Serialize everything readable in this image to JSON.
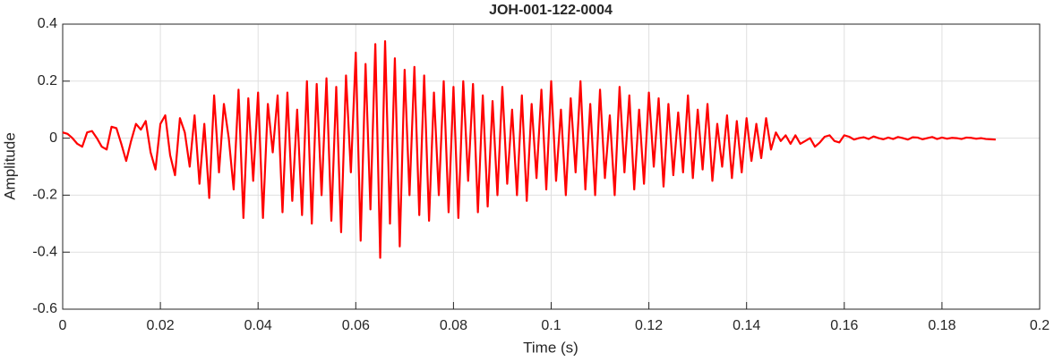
{
  "chart_data": {
    "type": "line",
    "title": "JOH-001-122-0004",
    "x_label": "Time (s)",
    "y_label": "Amplitude",
    "xlim": [
      0,
      0.2
    ],
    "xticks": [
      0,
      0.02,
      0.04,
      0.06,
      0.08,
      0.1,
      0.12,
      0.14,
      0.16,
      0.18,
      0.2
    ],
    "ylim": [
      -0.6,
      0.4
    ],
    "yticks": [
      -0.6,
      -0.4,
      -0.2,
      0,
      0.2,
      0.4
    ],
    "grid": true,
    "x": [
      0,
      0.001,
      0.002,
      0.003,
      0.004,
      0.005,
      0.006,
      0.007,
      0.008,
      0.009,
      0.01,
      0.011,
      0.012,
      0.013,
      0.014,
      0.015,
      0.016,
      0.017,
      0.018,
      0.019,
      0.02,
      0.021,
      0.022,
      0.023,
      0.024,
      0.025,
      0.026,
      0.027,
      0.028,
      0.029,
      0.03,
      0.031,
      0.032,
      0.033,
      0.034,
      0.035,
      0.036,
      0.037,
      0.038,
      0.039,
      0.04,
      0.041,
      0.042,
      0.043,
      0.044,
      0.045,
      0.046,
      0.047,
      0.048,
      0.049,
      0.05,
      0.051,
      0.052,
      0.053,
      0.054,
      0.055,
      0.056,
      0.057,
      0.058,
      0.059,
      0.06,
      0.061,
      0.062,
      0.063,
      0.064,
      0.065,
      0.066,
      0.067,
      0.068,
      0.069,
      0.07,
      0.071,
      0.072,
      0.073,
      0.074,
      0.075,
      0.076,
      0.077,
      0.078,
      0.079,
      0.08,
      0.081,
      0.082,
      0.083,
      0.084,
      0.085,
      0.086,
      0.087,
      0.088,
      0.089,
      0.09,
      0.091,
      0.092,
      0.093,
      0.094,
      0.095,
      0.096,
      0.097,
      0.098,
      0.099,
      0.1,
      0.101,
      0.102,
      0.103,
      0.104,
      0.105,
      0.106,
      0.107,
      0.108,
      0.109,
      0.11,
      0.111,
      0.112,
      0.113,
      0.114,
      0.115,
      0.116,
      0.117,
      0.118,
      0.119,
      0.12,
      0.121,
      0.122,
      0.123,
      0.124,
      0.125,
      0.126,
      0.127,
      0.128,
      0.129,
      0.13,
      0.131,
      0.132,
      0.133,
      0.134,
      0.135,
      0.136,
      0.137,
      0.138,
      0.139,
      0.14,
      0.141,
      0.142,
      0.143,
      0.144,
      0.145,
      0.146,
      0.147,
      0.148,
      0.149,
      0.15,
      0.151,
      0.152,
      0.153,
      0.154,
      0.155,
      0.156,
      0.157,
      0.158,
      0.159,
      0.16,
      0.161,
      0.162,
      0.163,
      0.164,
      0.165,
      0.166,
      0.167,
      0.168,
      0.169,
      0.17,
      0.171,
      0.172,
      0.173,
      0.174,
      0.175,
      0.176,
      0.177,
      0.178,
      0.179,
      0.18,
      0.181,
      0.182,
      0.183,
      0.184,
      0.185,
      0.186,
      0.187,
      0.188,
      0.189,
      0.19,
      0.191
    ],
    "series": [
      {
        "color": "#ff0000",
        "values": [
          0.02,
          0.015,
          0.0,
          -0.02,
          -0.03,
          0.02,
          0.025,
          0.0,
          -0.03,
          -0.04,
          0.04,
          0.035,
          -0.02,
          -0.08,
          -0.01,
          0.05,
          0.03,
          0.06,
          -0.05,
          -0.11,
          0.05,
          0.08,
          -0.06,
          -0.13,
          0.07,
          0.02,
          -0.1,
          0.08,
          -0.16,
          0.05,
          -0.21,
          0.15,
          -0.12,
          0.12,
          0.0,
          -0.18,
          0.17,
          -0.28,
          0.14,
          -0.15,
          0.16,
          -0.28,
          0.12,
          -0.05,
          0.15,
          -0.26,
          0.16,
          -0.22,
          0.1,
          -0.27,
          0.2,
          -0.3,
          0.19,
          -0.2,
          0.21,
          -0.29,
          0.18,
          -0.33,
          0.22,
          -0.12,
          0.3,
          -0.36,
          0.26,
          -0.25,
          0.33,
          -0.42,
          0.34,
          -0.3,
          0.28,
          -0.38,
          0.24,
          -0.2,
          0.25,
          -0.27,
          0.22,
          -0.29,
          0.16,
          -0.2,
          0.2,
          -0.26,
          0.18,
          -0.28,
          0.2,
          -0.15,
          0.19,
          -0.26,
          0.15,
          -0.24,
          0.13,
          -0.2,
          0.18,
          -0.16,
          0.1,
          -0.2,
          0.15,
          -0.22,
          0.12,
          -0.14,
          0.17,
          -0.18,
          0.2,
          -0.15,
          0.1,
          -0.2,
          0.14,
          -0.12,
          0.2,
          -0.18,
          0.12,
          -0.2,
          0.17,
          -0.14,
          0.08,
          -0.2,
          0.18,
          -0.12,
          0.15,
          -0.18,
          0.1,
          -0.16,
          0.16,
          -0.1,
          0.14,
          -0.17,
          0.12,
          -0.13,
          0.09,
          -0.12,
          0.15,
          -0.14,
          0.1,
          -0.11,
          0.12,
          -0.15,
          0.05,
          -0.1,
          0.08,
          -0.14,
          0.06,
          -0.12,
          0.07,
          -0.08,
          0.05,
          -0.07,
          0.07,
          -0.04,
          0.02,
          -0.01,
          0.01,
          -0.02,
          0.01,
          -0.02,
          -0.01,
          0.0,
          -0.03,
          -0.015,
          0.005,
          0.01,
          -0.01,
          -0.015,
          0.01,
          0.005,
          -0.005,
          0.0,
          0.003,
          -0.003,
          0.006,
          0.0,
          -0.004,
          0.002,
          -0.003,
          0.004,
          0.0,
          -0.005,
          0.003,
          0.002,
          -0.004,
          0.0,
          0.004,
          -0.003,
          0.002,
          -0.002,
          0.001,
          0.0,
          -0.003,
          0.002,
          0.001,
          -0.002,
          0.0,
          -0.003,
          -0.004,
          -0.005
        ]
      }
    ]
  }
}
